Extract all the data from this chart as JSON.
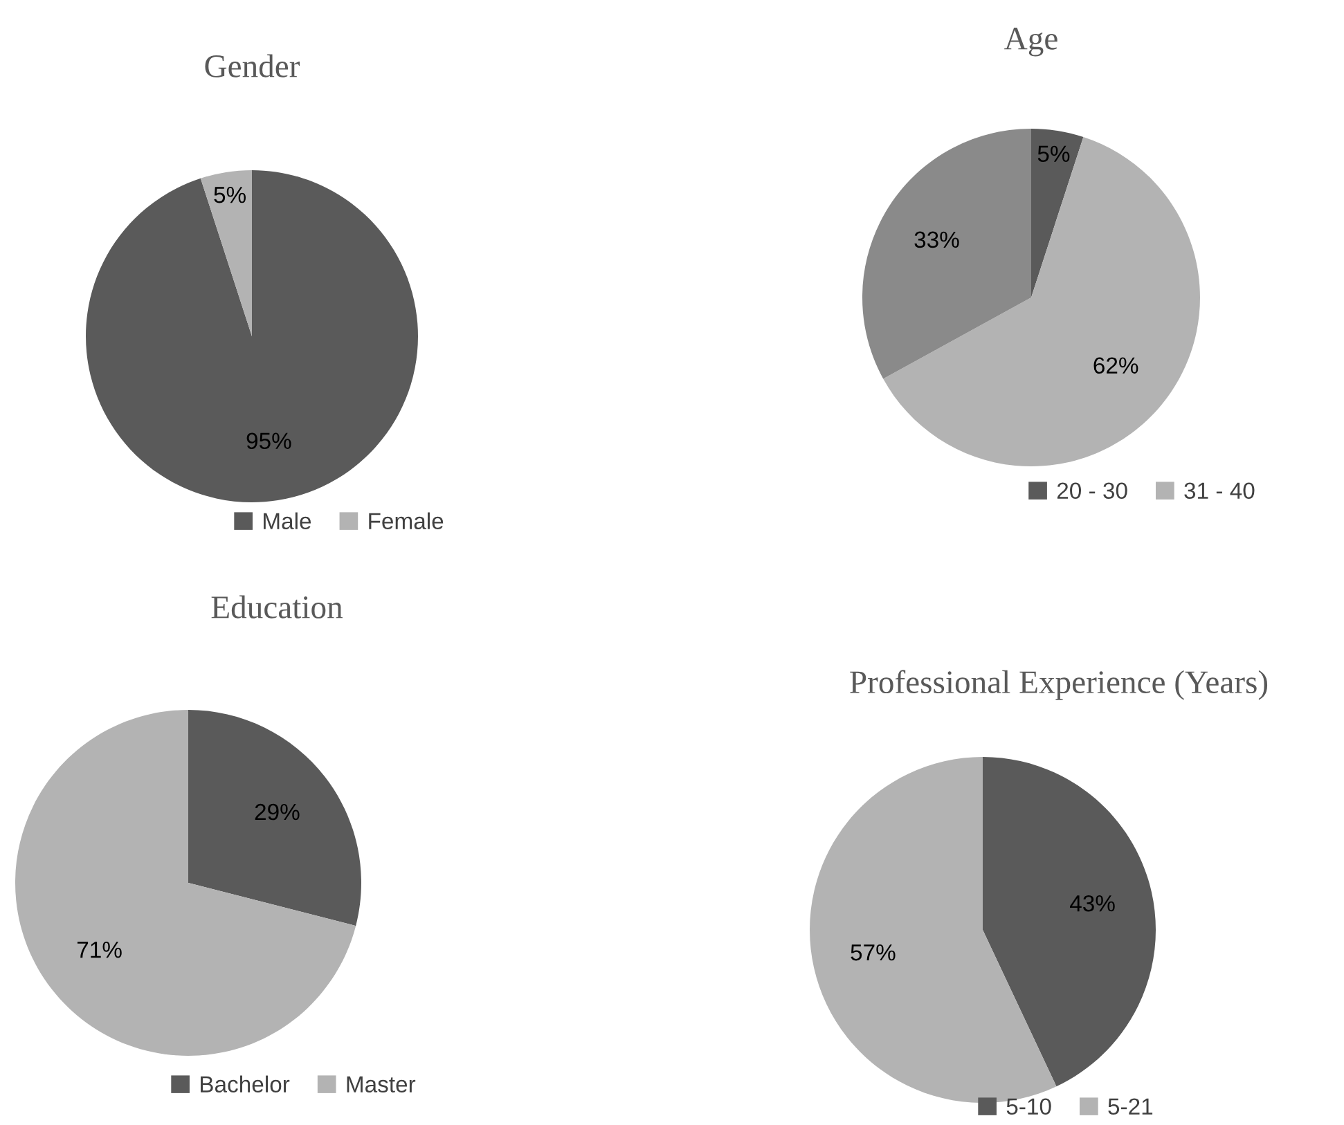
{
  "chart_data": [
    {
      "type": "pie",
      "title": "Gender",
      "categories": [
        "Male",
        "Female"
      ],
      "values": [
        95,
        5
      ],
      "value_labels": [
        "95%",
        "5%"
      ],
      "colors": [
        "#5a5a5a",
        "#b3b3b3"
      ],
      "legend": "bottom"
    },
    {
      "type": "pie",
      "title": "Age",
      "categories": [
        "20 - 30",
        "31 - 40",
        null
      ],
      "values": [
        5,
        62,
        33
      ],
      "value_labels": [
        "5%",
        "62%",
        "33%"
      ],
      "colors": [
        "#5a5a5a",
        "#b3b3b3",
        "#8a8a8a"
      ],
      "legend": "bottom"
    },
    {
      "type": "pie",
      "title": "Education",
      "categories": [
        "Bachelor",
        "Master"
      ],
      "values": [
        29,
        71
      ],
      "value_labels": [
        "29%",
        "71%"
      ],
      "colors": [
        "#5a5a5a",
        "#b3b3b3"
      ],
      "legend": "bottom"
    },
    {
      "type": "pie",
      "title": "Professional Experience (Years)",
      "categories": [
        "5-10",
        "5-21"
      ],
      "values": [
        43,
        57
      ],
      "value_labels": [
        "43%",
        "57%"
      ],
      "colors": [
        "#5a5a5a",
        "#b3b3b3"
      ],
      "legend": "bottom"
    }
  ]
}
